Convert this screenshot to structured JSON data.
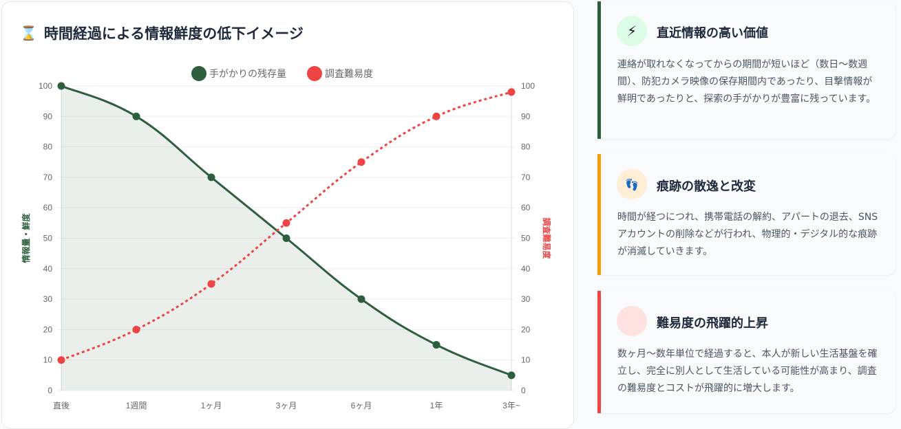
{
  "chart_title": "時間経過による情報鮮度の低下イメージ",
  "chart_data": {
    "type": "line",
    "title": "時間経過による情報鮮度の低下イメージ",
    "categories": [
      "直後",
      "1週間",
      "1ヶ月",
      "3ヶ月",
      "6ヶ月",
      "1年",
      "3年~"
    ],
    "series": [
      {
        "name": "手がかりの残存量",
        "values": [
          100,
          90,
          70,
          50,
          30,
          15,
          5
        ],
        "color": "#2d5e3e",
        "axis": "left",
        "fill": true,
        "dashed": false
      },
      {
        "name": "調査難易度",
        "values": [
          10,
          20,
          35,
          55,
          75,
          90,
          98
        ],
        "color": "#ef4444",
        "axis": "right",
        "fill": false,
        "dashed": true
      }
    ],
    "ylabel": "情報量・鮮度",
    "y2label": "調査難易度",
    "ylim": [
      0,
      100
    ],
    "y2lim": [
      0,
      100
    ],
    "yticks": [
      0,
      10,
      20,
      30,
      40,
      50,
      60,
      70,
      80,
      90,
      100
    ],
    "legend": "top-center",
    "grid": true
  },
  "cards": [
    {
      "title": "直近情報の高い価値",
      "icon": "lightning-icon",
      "accent": "#2d5e3e",
      "icon_bg": "#dcfce7",
      "text": "連絡が取れなくなってからの期間が短いほど（数日〜数週間）、防犯カメラ映像の保存期間内であったり、目撃情報が鮮明であったりと、探索の手がかりが豊富に残っています。"
    },
    {
      "title": "痕跡の散逸と改変",
      "icon": "footprints-icon",
      "accent": "#f59e0b",
      "icon_bg": "#ffedd5",
      "text": "時間が経つにつれ、携帯電話の解約、アパートの退去、SNSアカウントの削除などが行われ、物理的・デジタル的な痕跡が消滅していきます。"
    },
    {
      "title": "難易度の飛躍的上昇",
      "icon": "chart-up-icon",
      "accent": "#ef4444",
      "icon_bg": "#fee2e2",
      "text": "数ヶ月〜数年単位で経過すると、本人が新しい生活基盤を確立し、完全に別人として生活している可能性が高まり、調査の難易度とコストが飛躍的に増大します。"
    }
  ]
}
